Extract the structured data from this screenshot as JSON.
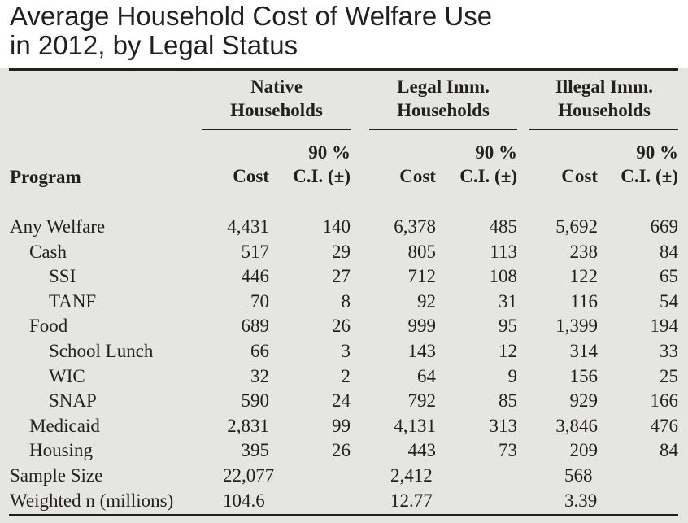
{
  "title_lines": [
    "Average Household Cost of Welfare Use",
    "in 2012, by Legal Status"
  ],
  "chart_data": {
    "type": "table",
    "title": "Average Household Cost of Welfare Use in 2012, by Legal Status",
    "groups": [
      "Native Households",
      "Legal Imm. Households",
      "Illegal Imm. Households"
    ],
    "group_lines": [
      [
        "Native",
        "Households"
      ],
      [
        "Legal Imm.",
        "Households"
      ],
      [
        "Illegal Imm.",
        "Households"
      ]
    ],
    "row_header": "Program",
    "cost_label": "Cost",
    "ci_label_top": "90 %",
    "ci_label_bottom": "C.I. (±)",
    "rows": [
      {
        "program": "Any Welfare",
        "level": 0,
        "values": [
          "4,431",
          "140",
          "6,378",
          "485",
          "5,692",
          "669"
        ]
      },
      {
        "program": "Cash",
        "level": 1,
        "values": [
          "517",
          "29",
          "805",
          "113",
          "238",
          "84"
        ]
      },
      {
        "program": "SSI",
        "level": 2,
        "values": [
          "446",
          "27",
          "712",
          "108",
          "122",
          "65"
        ]
      },
      {
        "program": "TANF",
        "level": 2,
        "values": [
          "70",
          "8",
          "92",
          "31",
          "116",
          "54"
        ]
      },
      {
        "program": "Food",
        "level": 1,
        "values": [
          "689",
          "26",
          "999",
          "95",
          "1,399",
          "194"
        ]
      },
      {
        "program": "School Lunch",
        "level": 2,
        "values": [
          "66",
          "3",
          "143",
          "12",
          "314",
          "33"
        ]
      },
      {
        "program": "WIC",
        "level": 2,
        "values": [
          "32",
          "2",
          "64",
          "9",
          "156",
          "25"
        ]
      },
      {
        "program": "SNAP",
        "level": 2,
        "values": [
          "590",
          "24",
          "792",
          "85",
          "929",
          "166"
        ]
      },
      {
        "program": "Medicaid",
        "level": 1,
        "values": [
          "2,831",
          "99",
          "4,131",
          "313",
          "3,846",
          "476"
        ]
      },
      {
        "program": "Housing",
        "level": 1,
        "values": [
          "395",
          "26",
          "443",
          "73",
          "209",
          "84"
        ]
      }
    ],
    "footer_rows": [
      {
        "label": "Sample Size",
        "values": [
          "22,077",
          "2,412",
          "568"
        ]
      },
      {
        "label": "Weighted n (millions)",
        "values": [
          "104.6",
          "12.77",
          "3.39"
        ]
      }
    ]
  }
}
